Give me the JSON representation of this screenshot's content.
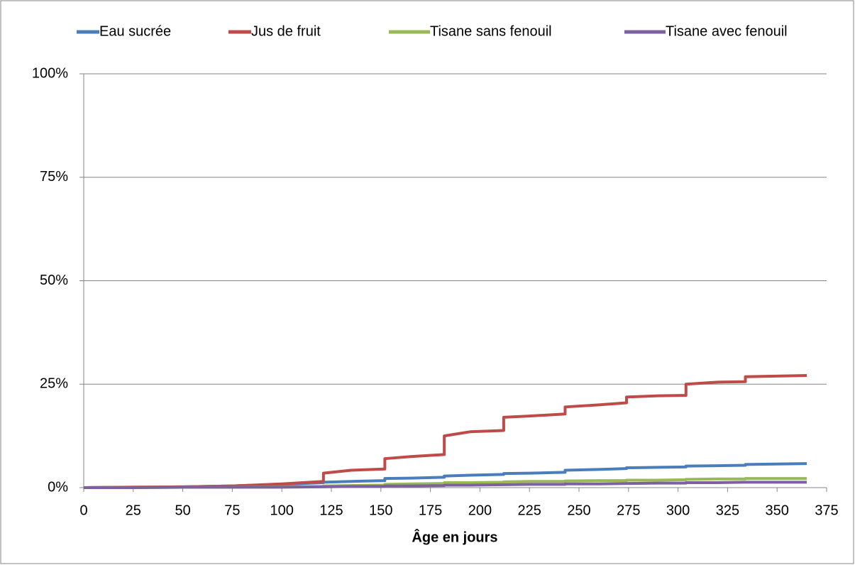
{
  "chart_data": {
    "type": "line",
    "xlabel": "Âge en jours",
    "x": [
      0,
      25,
      50,
      75,
      100,
      121,
      121,
      135,
      152,
      152,
      165,
      182,
      182,
      195,
      212,
      212,
      225,
      243,
      243,
      260,
      274,
      274,
      290,
      304,
      304,
      320,
      334,
      334,
      365
    ],
    "series": [
      {
        "name": "Eau sucrée",
        "color": "#4a7ebb",
        "values": [
          0,
          0.1,
          0.2,
          0.4,
          0.8,
          1.2,
          1.3,
          1.5,
          1.7,
          2.2,
          2.3,
          2.5,
          2.8,
          3.0,
          3.2,
          3.4,
          3.5,
          3.7,
          4.2,
          4.4,
          4.6,
          4.8,
          4.9,
          5.0,
          5.2,
          5.3,
          5.4,
          5.6,
          5.8
        ]
      },
      {
        "name": "Jus de fruit",
        "color": "#be4b48",
        "values": [
          0,
          0.1,
          0.2,
          0.4,
          0.9,
          1.5,
          3.5,
          4.2,
          4.5,
          7.0,
          7.5,
          8.0,
          12.5,
          13.5,
          13.8,
          17.0,
          17.3,
          17.8,
          19.5,
          20.0,
          20.5,
          21.9,
          22.2,
          22.3,
          25.0,
          25.5,
          25.6,
          26.8,
          27.1
        ]
      },
      {
        "name": "Tisane sans fenouil",
        "color": "#98b954",
        "values": [
          0,
          0,
          0.1,
          0.1,
          0.2,
          0.3,
          0.4,
          0.5,
          0.6,
          0.8,
          0.9,
          1.0,
          1.2,
          1.2,
          1.3,
          1.4,
          1.5,
          1.5,
          1.6,
          1.7,
          1.7,
          1.8,
          1.8,
          1.9,
          2.0,
          2.1,
          2.1,
          2.2,
          2.2
        ]
      },
      {
        "name": "Tisane avec fenouil",
        "color": "#7d60a0",
        "values": [
          0,
          0,
          0.1,
          0.1,
          0.1,
          0.2,
          0.2,
          0.3,
          0.3,
          0.4,
          0.4,
          0.5,
          0.6,
          0.6,
          0.7,
          0.7,
          0.8,
          0.8,
          0.9,
          0.9,
          1.0,
          1.0,
          1.1,
          1.1,
          1.2,
          1.2,
          1.3,
          1.3,
          1.3
        ]
      }
    ],
    "xlim": [
      0,
      375
    ],
    "xticks": [
      0,
      25,
      50,
      75,
      100,
      125,
      150,
      175,
      200,
      225,
      250,
      275,
      300,
      325,
      350,
      375
    ],
    "ylim": [
      0,
      100
    ],
    "yticks": [
      {
        "value": 0,
        "label": "0%"
      },
      {
        "value": 25,
        "label": "25%"
      },
      {
        "value": 50,
        "label": "50%"
      },
      {
        "value": 75,
        "label": "75%"
      },
      {
        "value": 100,
        "label": "100%"
      }
    ],
    "grid": true,
    "legend": "top"
  }
}
